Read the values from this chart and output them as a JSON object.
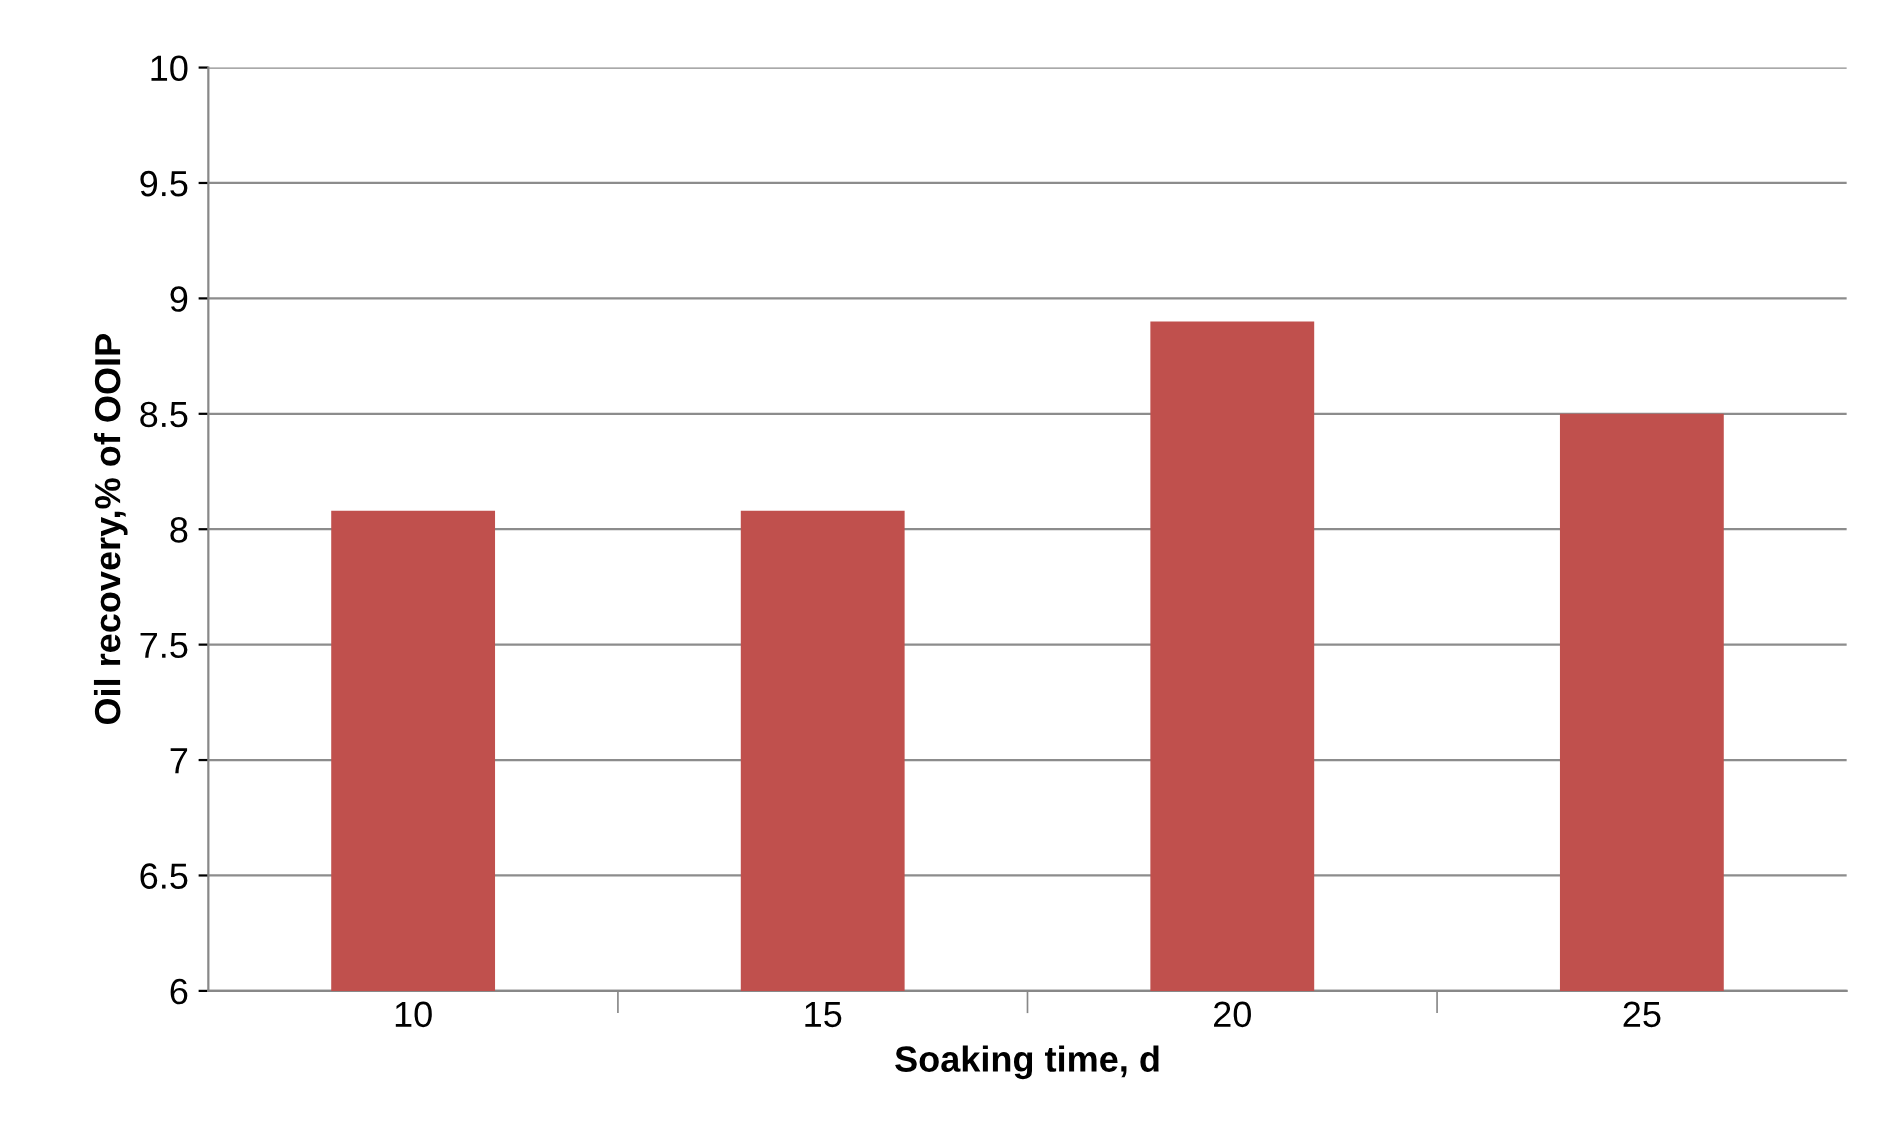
{
  "chart_data": {
    "type": "bar",
    "xlabel": "Soaking time, d",
    "ylabel": "Oil recovery,% of OOIP",
    "categories": [
      "10",
      "15",
      "20",
      "25"
    ],
    "series": [
      {
        "color": "#c0504d",
        "values": [
          8.08,
          8.08,
          8.9,
          8.5
        ]
      }
    ],
    "ylim": [
      6,
      10
    ],
    "yticks": [
      6,
      6.5,
      7,
      7.5,
      8,
      8.5,
      9,
      9.5,
      10
    ],
    "grid": "y",
    "legend": false
  }
}
